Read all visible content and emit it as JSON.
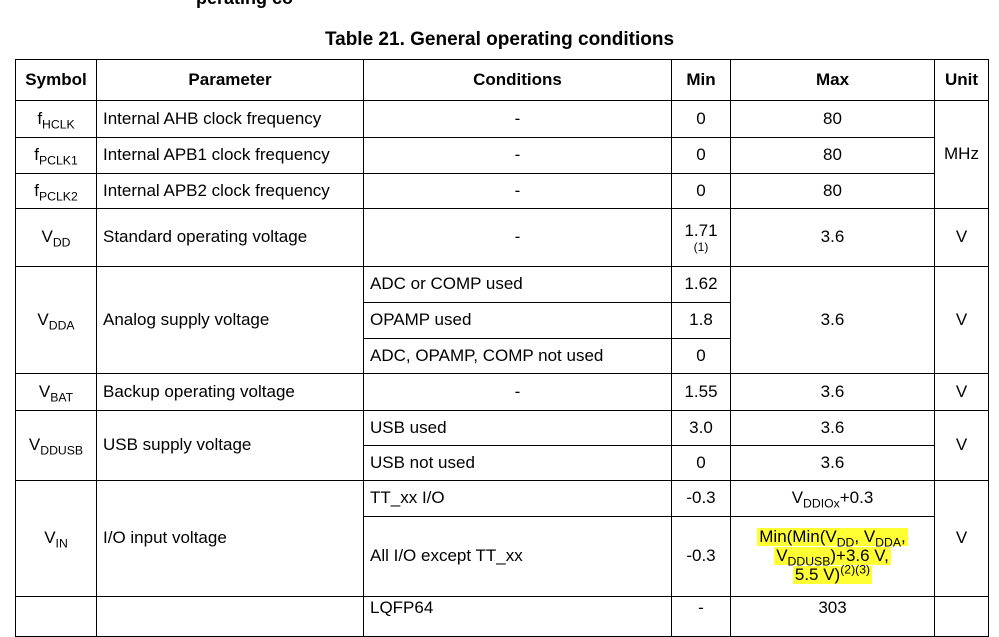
{
  "section_fragment": "perating co",
  "caption": "Table 21. General operating conditions",
  "headers": {
    "symbol": "Symbol",
    "parameter": "Parameter",
    "conditions": "Conditions",
    "min": "Min",
    "max": "Max",
    "unit": "Unit"
  },
  "rows": {
    "fhclk": {
      "sym": "f",
      "sub": "HCLK",
      "param": "Internal AHB clock frequency",
      "cond": "-",
      "min": "0",
      "max": "80"
    },
    "fpclk1": {
      "sym": "f",
      "sub": "PCLK1",
      "param": "Internal APB1 clock frequency",
      "cond": "-",
      "min": "0",
      "max": "80"
    },
    "fpclk2": {
      "sym": "f",
      "sub": "PCLK2",
      "param": "Internal APB2 clock frequency",
      "cond": "-",
      "min": "0",
      "max": "80"
    },
    "clk_unit": "MHz",
    "vdd": {
      "sym": "V",
      "sub": "DD",
      "param": "Standard operating voltage",
      "cond": "-",
      "min": "1.71",
      "min_note": "(1)",
      "max": "3.6",
      "unit": "V"
    },
    "vdda": {
      "sym": "V",
      "sub": "DDA",
      "param": "Analog supply voltage",
      "conds": [
        "ADC or COMP used",
        "OPAMP used",
        "ADC, OPAMP, COMP not used"
      ],
      "mins": [
        "1.62",
        "1.8",
        "0"
      ],
      "max": "3.6",
      "unit": "V"
    },
    "vbat": {
      "sym": "V",
      "sub": "BAT",
      "param": "Backup operating voltage",
      "cond": "-",
      "min": "1.55",
      "max": "3.6",
      "unit": "V"
    },
    "vddusb": {
      "sym": "V",
      "sub": "DDUSB",
      "param": "USB supply voltage",
      "conds": [
        "USB used",
        "USB not used"
      ],
      "mins": [
        "3.0",
        "0"
      ],
      "maxs": [
        "3.6",
        "3.6"
      ],
      "unit": "V"
    },
    "vin": {
      "sym": "V",
      "sub": "IN",
      "param": "I/O input voltage",
      "conds": [
        "TT_xx I/O",
        "All I/O except TT_xx"
      ],
      "mins": [
        "-0.3",
        "-0.3"
      ],
      "max1_v": "V",
      "max1_sub": "DDIOx",
      "max1_tail": "+0.3",
      "max2": {
        "p1": "Min(Min(V",
        "s1": "DD",
        "p2": ", V",
        "s2": "DDA",
        "p3": ",",
        "p4": "V",
        "s3": "DDUSB",
        "p5": ")+3.6 V,",
        "p6": "5.5 V)",
        "sup": "(2)(3)"
      },
      "unit": "V"
    },
    "last": {
      "cond": "LQFP64",
      "min": "-",
      "max": "303"
    }
  },
  "colors": {
    "highlight": "#ffff33"
  }
}
